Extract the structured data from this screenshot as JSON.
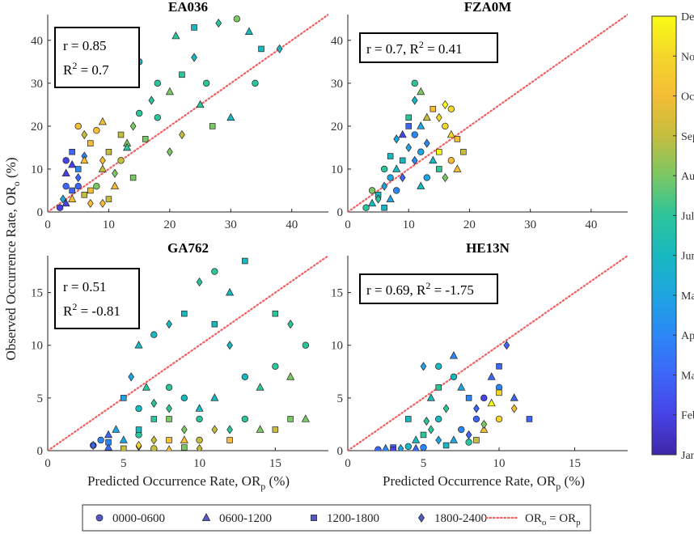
{
  "chart_data": [
    {
      "type": "scatter",
      "title": "EA036",
      "stats": {
        "r": "r = 0.85",
        "r2": "R",
        "r2sup": "2",
        "r2val": " = 0.7",
        "layout": "two-line"
      },
      "xlim": [
        0,
        46
      ],
      "ylim": [
        0,
        46
      ],
      "xticks": [
        0,
        10,
        20,
        30,
        40
      ],
      "yticks": [
        0,
        10,
        20,
        30,
        40
      ],
      "points": [
        [
          2,
          1,
          1
        ],
        [
          3,
          2,
          1
        ],
        [
          4,
          5,
          2
        ],
        [
          5,
          8,
          2
        ],
        [
          3,
          12,
          1
        ],
        [
          4,
          11,
          1
        ],
        [
          5,
          10,
          3
        ],
        [
          2.5,
          3,
          4
        ],
        [
          3,
          6,
          2
        ],
        [
          4,
          3,
          9
        ],
        [
          6,
          4,
          8
        ],
        [
          7,
          2,
          9
        ],
        [
          8,
          6,
          7
        ],
        [
          9,
          10,
          8
        ],
        [
          7,
          16,
          9
        ],
        [
          6,
          18,
          8
        ],
        [
          8,
          19,
          9
        ],
        [
          9,
          21,
          9
        ],
        [
          10,
          14,
          8
        ],
        [
          11,
          9,
          7
        ],
        [
          12,
          12,
          8
        ],
        [
          13,
          16,
          7
        ],
        [
          12,
          18,
          8
        ],
        [
          14,
          20,
          7
        ],
        [
          15,
          23,
          6
        ],
        [
          13,
          15,
          6
        ],
        [
          16,
          17,
          7
        ],
        [
          17,
          26,
          6
        ],
        [
          18,
          30,
          6
        ],
        [
          20,
          28,
          7
        ],
        [
          22,
          32,
          6
        ],
        [
          24,
          36,
          5
        ],
        [
          26,
          30,
          6
        ],
        [
          21,
          41,
          6
        ],
        [
          24,
          43,
          5
        ],
        [
          28,
          44,
          6
        ],
        [
          31,
          45,
          7
        ],
        [
          33,
          42,
          5
        ],
        [
          35,
          38,
          5
        ],
        [
          38,
          38,
          5
        ],
        [
          34,
          30,
          6
        ],
        [
          30,
          22,
          5
        ],
        [
          27,
          20,
          7
        ],
        [
          22,
          18,
          8
        ],
        [
          18,
          22,
          6
        ],
        [
          11,
          6,
          9
        ],
        [
          10,
          3,
          8
        ],
        [
          9,
          2,
          9
        ],
        [
          5,
          6,
          2
        ],
        [
          3,
          9,
          1
        ],
        [
          4,
          14,
          2
        ],
        [
          6,
          13,
          3
        ],
        [
          15,
          35,
          5
        ],
        [
          25,
          25,
          6
        ],
        [
          14,
          8,
          7
        ],
        [
          20,
          14,
          7
        ],
        [
          5,
          20,
          9
        ],
        [
          6,
          12,
          9
        ],
        [
          7,
          5,
          9
        ],
        [
          9,
          12,
          9
        ]
      ]
    },
    {
      "type": "scatter",
      "title": "FZA0M",
      "stats": {
        "r": "r = 0.7, R",
        "r2": "",
        "r2sup": "2",
        "r2val": " = 0.41",
        "layout": "one-line"
      },
      "xlim": [
        0,
        46
      ],
      "ylim": [
        0,
        46
      ],
      "xticks": [
        0,
        10,
        20,
        30,
        40
      ],
      "yticks": [
        0,
        10,
        20,
        30,
        40
      ],
      "points": [
        [
          3,
          1,
          6
        ],
        [
          4,
          2,
          5
        ],
        [
          5,
          4,
          5
        ],
        [
          6,
          6,
          4
        ],
        [
          7,
          8,
          4
        ],
        [
          8,
          10,
          5
        ],
        [
          9,
          12,
          5
        ],
        [
          10,
          15,
          4
        ],
        [
          11,
          18,
          3
        ],
        [
          12,
          20,
          4
        ],
        [
          10,
          22,
          6
        ],
        [
          11,
          26,
          5
        ],
        [
          11,
          30,
          6
        ],
        [
          12,
          28,
          7
        ],
        [
          14,
          24,
          9
        ],
        [
          15,
          22,
          10
        ],
        [
          16,
          20,
          10
        ],
        [
          17,
          18,
          10
        ],
        [
          18,
          17,
          9
        ],
        [
          13,
          16,
          3
        ],
        [
          12,
          14,
          4
        ],
        [
          14,
          12,
          5
        ],
        [
          15,
          10,
          6
        ],
        [
          16,
          8,
          7
        ],
        [
          17,
          12,
          9
        ],
        [
          18,
          10,
          9
        ],
        [
          19,
          14,
          8
        ],
        [
          9,
          8,
          2
        ],
        [
          8,
          5,
          3
        ],
        [
          7,
          3,
          4
        ],
        [
          6,
          1,
          5
        ],
        [
          5,
          3,
          6
        ],
        [
          4,
          5,
          7
        ],
        [
          9,
          18,
          1
        ],
        [
          10,
          20,
          2
        ],
        [
          11,
          12,
          3
        ],
        [
          13,
          8,
          4
        ],
        [
          12,
          6,
          5
        ],
        [
          15,
          14,
          11
        ],
        [
          16,
          25,
          11
        ],
        [
          17,
          24,
          10
        ],
        [
          13,
          22,
          8
        ],
        [
          7,
          13,
          5
        ],
        [
          8,
          17,
          4
        ],
        [
          6,
          10,
          6
        ]
      ]
    },
    {
      "type": "scatter",
      "title": "GA762",
      "stats": {
        "r": "r = 0.51",
        "r2": "R",
        "r2sup": "2",
        "r2val": " = -0.81",
        "layout": "two-line"
      },
      "xlim": [
        0,
        18.5
      ],
      "ylim": [
        0,
        18.5
      ],
      "xticks": [
        0,
        5,
        10,
        15
      ],
      "yticks": [
        0,
        5,
        10,
        15
      ],
      "points": [
        [
          3,
          0.5,
          1
        ],
        [
          4,
          0.3,
          2
        ],
        [
          5,
          0.2,
          8
        ],
        [
          6,
          0.4,
          9
        ],
        [
          7,
          0.2,
          8
        ],
        [
          8,
          0.1,
          9
        ],
        [
          9,
          0.3,
          7
        ],
        [
          10,
          0.2,
          8
        ],
        [
          3.5,
          1,
          3
        ],
        [
          4.5,
          2,
          4
        ],
        [
          5,
          5,
          4
        ],
        [
          5.5,
          7,
          4
        ],
        [
          6,
          4,
          5
        ],
        [
          6.5,
          6,
          6
        ],
        [
          7,
          3,
          6
        ],
        [
          8,
          4,
          6
        ],
        [
          9,
          5,
          5
        ],
        [
          10,
          4,
          5
        ],
        [
          9,
          13,
          5
        ],
        [
          10,
          16,
          6
        ],
        [
          11,
          17,
          6
        ],
        [
          12,
          15,
          5
        ],
        [
          13,
          18,
          5
        ],
        [
          8,
          12,
          5
        ],
        [
          7,
          11,
          5
        ],
        [
          6,
          10,
          5
        ],
        [
          11,
          12,
          5
        ],
        [
          12,
          10,
          5
        ],
        [
          13,
          7,
          5
        ],
        [
          14,
          6,
          6
        ],
        [
          15,
          13,
          6
        ],
        [
          16,
          12,
          6
        ],
        [
          17,
          10,
          6
        ],
        [
          17,
          3,
          7
        ],
        [
          16,
          3,
          7
        ],
        [
          12,
          2,
          6
        ],
        [
          13,
          3,
          6
        ],
        [
          14,
          2,
          7
        ],
        [
          15,
          2,
          8
        ],
        [
          11,
          2,
          8
        ],
        [
          10,
          1,
          8
        ],
        [
          9,
          1,
          9
        ],
        [
          8,
          1,
          9
        ],
        [
          7,
          1,
          8
        ],
        [
          6,
          1.5,
          6
        ],
        [
          5,
          1,
          4
        ],
        [
          4,
          0.8,
          3
        ],
        [
          3,
          0.5,
          2
        ],
        [
          15,
          8,
          6
        ],
        [
          16,
          7,
          7
        ],
        [
          6,
          2,
          5
        ],
        [
          7,
          4.5,
          6
        ],
        [
          8,
          6,
          6
        ],
        [
          4,
          1.5,
          2
        ],
        [
          12,
          1,
          9
        ],
        [
          9,
          2,
          7
        ],
        [
          10,
          3,
          6
        ],
        [
          11,
          5,
          5
        ],
        [
          8,
          3,
          7
        ],
        [
          6,
          0.5,
          10
        ]
      ]
    },
    {
      "type": "scatter",
      "title": "HE13N",
      "stats": {
        "r": "r = 0.69, R",
        "r2": "",
        "r2sup": "2",
        "r2val": " = -1.75",
        "layout": "one-line"
      },
      "xlim": [
        0,
        18.5
      ],
      "ylim": [
        0,
        18.5
      ],
      "xticks": [
        0,
        5,
        10,
        15
      ],
      "yticks": [
        0,
        5,
        10,
        15
      ],
      "points": [
        [
          2,
          0.1,
          2
        ],
        [
          2.5,
          0.2,
          3
        ],
        [
          3,
          0.3,
          2
        ],
        [
          3.5,
          0.2,
          4
        ],
        [
          4,
          0.4,
          5
        ],
        [
          4.5,
          1,
          5
        ],
        [
          5,
          1.5,
          6
        ],
        [
          5.5,
          2,
          6
        ],
        [
          6,
          3,
          5
        ],
        [
          5.5,
          5,
          5
        ],
        [
          6,
          6,
          6
        ],
        [
          6.5,
          4,
          6
        ],
        [
          7,
          7,
          5
        ],
        [
          7.5,
          6,
          4
        ],
        [
          8,
          5,
          3
        ],
        [
          8.5,
          4,
          2
        ],
        [
          9,
          5,
          1
        ],
        [
          9.5,
          7,
          2
        ],
        [
          10,
          8,
          2
        ],
        [
          10.5,
          10,
          2
        ],
        [
          10,
          6,
          3
        ],
        [
          11,
          5,
          2
        ],
        [
          12,
          3,
          2
        ],
        [
          11,
          4,
          9
        ],
        [
          10,
          3,
          10
        ],
        [
          9,
          2,
          9
        ],
        [
          8.5,
          1,
          8
        ],
        [
          8,
          1.5,
          2
        ],
        [
          7.5,
          2,
          3
        ],
        [
          7,
          1,
          4
        ],
        [
          6.5,
          0.5,
          5
        ],
        [
          6,
          1,
          4
        ],
        [
          5,
          0.3,
          3
        ],
        [
          4.5,
          0.2,
          2
        ],
        [
          3,
          0.1,
          1
        ],
        [
          5,
          8,
          4
        ],
        [
          6,
          8,
          5
        ],
        [
          7,
          9,
          3
        ],
        [
          4,
          3,
          5
        ],
        [
          5.2,
          2.8,
          6
        ],
        [
          8.5,
          3,
          2
        ],
        [
          9.5,
          4.5,
          11
        ],
        [
          10,
          5.5,
          10
        ],
        [
          9,
          2.5,
          7
        ],
        [
          8,
          0.8,
          6
        ]
      ]
    }
  ],
  "axes": {
    "ylabel": "Observed Occurrence Rate, OR",
    "ylabel_sub": "o",
    "ylabel_suffix": " (%)",
    "xlabel": "Predicted Occurrence Rate, OR",
    "xlabel_sub": "p",
    "xlabel_suffix": " (%)"
  },
  "colorbar": {
    "labels": [
      "Jan",
      "Feb",
      "Mar",
      "Apr",
      "May",
      "Jun",
      "Jul",
      "Aug",
      "Sep",
      "Oct",
      "Nov",
      "Dec"
    ],
    "colors": [
      "#3e26a8",
      "#4743e6",
      "#3d66f8",
      "#2c87f6",
      "#1ea5e0",
      "#17b8c0",
      "#2cc49a",
      "#7ac764",
      "#c4bd3e",
      "#f4bd35",
      "#f3d62a",
      "#f9fb14"
    ]
  },
  "legend": {
    "items": [
      {
        "label": "0000-0600",
        "marker": "circle"
      },
      {
        "label": "0600-1200",
        "marker": "triangle"
      },
      {
        "label": "1200-1800",
        "marker": "square"
      },
      {
        "label": "1800-2400",
        "marker": "diamond"
      },
      {
        "label": "OR",
        "sub1": "o",
        "mid": " = OR",
        "sub2": "p",
        "marker": "dotted-line"
      }
    ],
    "marker_color": "#5557c8",
    "line_color": "#f06060"
  },
  "colors": {
    "identity_line": "#f06060",
    "marker_edge": "#222222",
    "frame": "#222222"
  }
}
